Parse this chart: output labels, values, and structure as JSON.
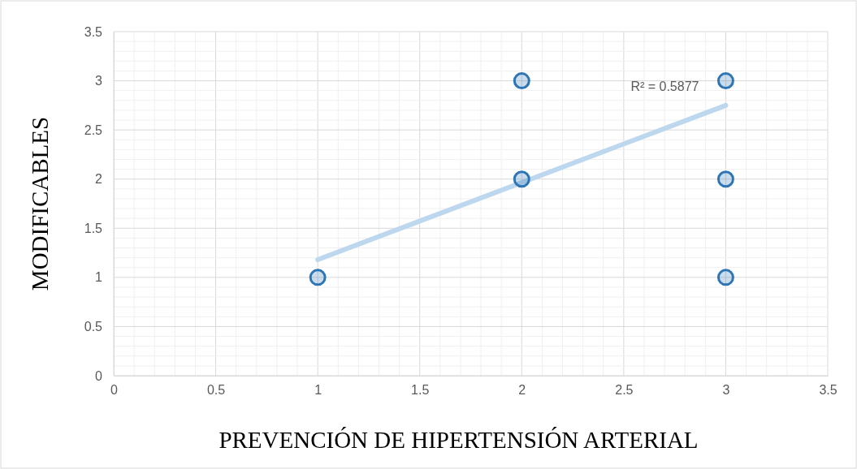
{
  "chart_data": {
    "type": "scatter",
    "xlabel": "PREVENCIÓN DE HIPERTENSIÓN ARTERIAL",
    "ylabel": "MODIFICABLES",
    "xlim": [
      0,
      3.5
    ],
    "ylim": [
      0,
      3.5
    ],
    "xticks": [
      0,
      0.5,
      1,
      1.5,
      2,
      2.5,
      3,
      3.5
    ],
    "yticks": [
      0,
      0.5,
      1,
      1.5,
      2,
      2.5,
      3,
      3.5
    ],
    "grid": true,
    "series": [
      {
        "color": "#2e75b6",
        "marker": "circle",
        "x": [
          1,
          2,
          2,
          3,
          3,
          3
        ],
        "values": [
          1,
          2,
          3,
          3,
          2,
          1
        ]
      },
      {
        "type": "line",
        "color": "#bdd7ee",
        "x": [
          1,
          3
        ],
        "values": [
          1.18,
          2.75
        ]
      }
    ],
    "annotations": [
      "R² = 0.5877"
    ]
  }
}
